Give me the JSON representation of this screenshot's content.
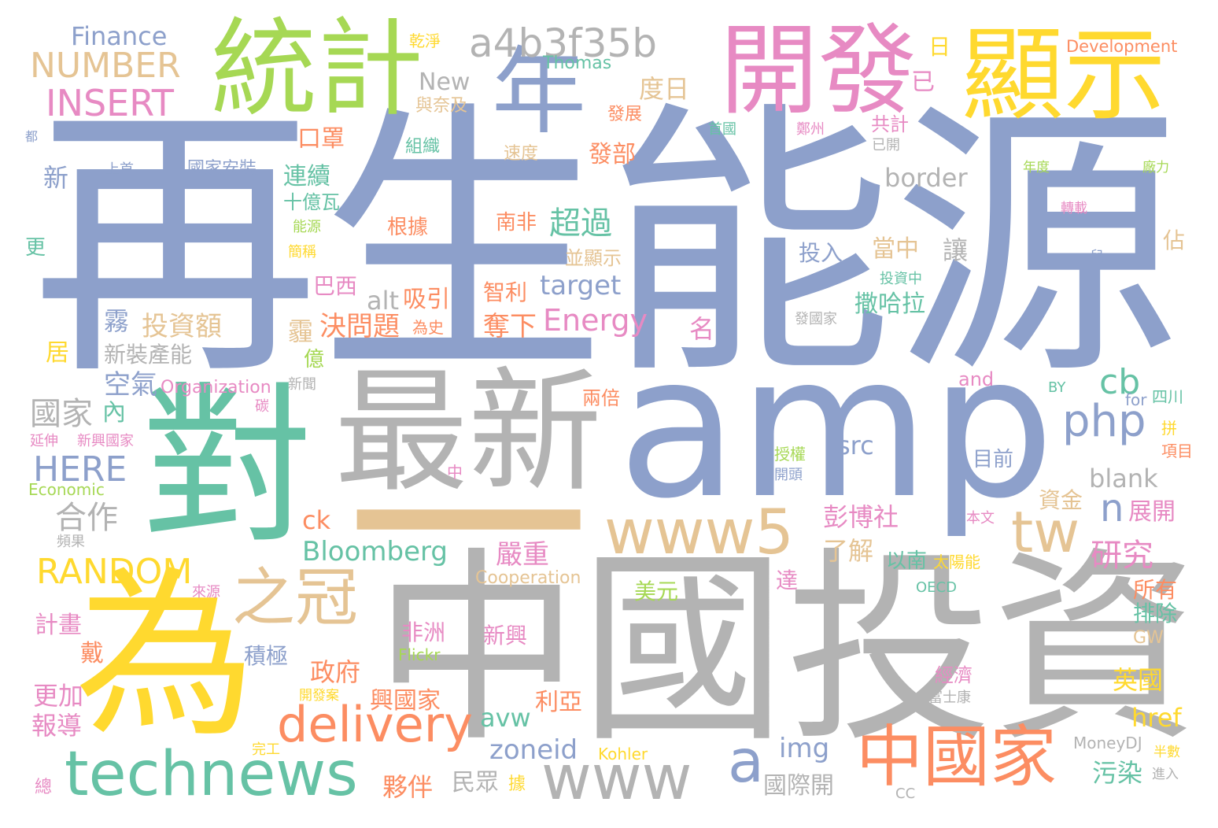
{
  "palette": {
    "blue": "#8da0cb",
    "gray": "#b3b3b3",
    "yellow": "#ffd92f",
    "green": "#a6d854",
    "pink": "#e78ac3",
    "orange": "#fc8d62",
    "teal": "#66c2a5",
    "tan": "#e5c494"
  },
  "words": [
    {
      "text": "再生能源",
      "color": "blue"
    },
    {
      "text": "amp",
      "color": "blue"
    },
    {
      "text": "中國投資",
      "color": "gray"
    },
    {
      "text": "一",
      "color": "tan"
    },
    {
      "text": "對",
      "color": "teal"
    },
    {
      "text": "為",
      "color": "yellow"
    },
    {
      "text": "最新",
      "color": "gray"
    },
    {
      "text": "統計",
      "color": "green"
    },
    {
      "text": "開發",
      "color": "pink"
    },
    {
      "text": "顯示",
      "color": "yellow"
    },
    {
      "text": "年",
      "color": "blue"
    },
    {
      "text": "technews",
      "color": "teal"
    },
    {
      "text": "www5",
      "color": "tan"
    },
    {
      "text": "www",
      "color": "gray"
    },
    {
      "text": "中國家",
      "color": "orange"
    },
    {
      "text": "a4b3f35b",
      "color": "gray"
    },
    {
      "text": "之冠",
      "color": "tan"
    },
    {
      "text": "delivery",
      "color": "orange"
    },
    {
      "text": "tw",
      "color": "tan"
    },
    {
      "text": "php",
      "color": "blue"
    },
    {
      "text": "a",
      "color": "blue"
    },
    {
      "text": "NUMBER",
      "color": "tan"
    },
    {
      "text": "INSERT",
      "color": "pink"
    },
    {
      "text": "HERE",
      "color": "blue"
    },
    {
      "text": "RANDOM",
      "color": "yellow"
    },
    {
      "text": "Finance",
      "color": "blue"
    },
    {
      "text": "Thomas",
      "color": "teal"
    },
    {
      "text": "Development",
      "color": "orange"
    },
    {
      "text": "乾淨",
      "color": "yellow"
    },
    {
      "text": "New",
      "color": "gray"
    },
    {
      "text": "與奈及",
      "color": "tan"
    },
    {
      "text": "度日",
      "color": "tan"
    },
    {
      "text": "日",
      "color": "yellow"
    },
    {
      "text": "已",
      "color": "pink"
    },
    {
      "text": "發展",
      "color": "orange"
    },
    {
      "text": "共計",
      "color": "pink"
    },
    {
      "text": "已開",
      "color": "gray"
    },
    {
      "text": "首國",
      "color": "teal"
    },
    {
      "text": "鄭州",
      "color": "pink"
    },
    {
      "text": "口罩",
      "color": "orange"
    },
    {
      "text": "組織",
      "color": "teal"
    },
    {
      "text": "速度",
      "color": "tan"
    },
    {
      "text": "發部",
      "color": "orange"
    },
    {
      "text": "都",
      "color": "blue"
    },
    {
      "text": "上首",
      "color": "blue"
    },
    {
      "text": "國家安裝",
      "color": "blue"
    },
    {
      "text": "新",
      "color": "blue"
    },
    {
      "text": "連續",
      "color": "teal"
    },
    {
      "text": "十億瓦",
      "color": "teal"
    },
    {
      "text": "border",
      "color": "gray"
    },
    {
      "text": "年度",
      "color": "green"
    },
    {
      "text": "廠力",
      "color": "green"
    },
    {
      "text": "轉載",
      "color": "pink"
    },
    {
      "text": "能源",
      "color": "green"
    },
    {
      "text": "根據",
      "color": "orange"
    },
    {
      "text": "南非",
      "color": "orange"
    },
    {
      "text": "超過",
      "color": "teal"
    },
    {
      "text": "更",
      "color": "teal"
    },
    {
      "text": "簡稱",
      "color": "yellow"
    },
    {
      "text": "並顯示",
      "color": "tan"
    },
    {
      "text": "投入",
      "color": "blue"
    },
    {
      "text": "當中",
      "color": "tan"
    },
    {
      "text": "讓",
      "color": "gray"
    },
    {
      "text": "佔",
      "color": "tan"
    },
    {
      "text": "兒",
      "color": "blue"
    },
    {
      "text": "投資中",
      "color": "teal"
    },
    {
      "text": "巴西",
      "color": "pink"
    },
    {
      "text": "智利",
      "color": "orange"
    },
    {
      "text": "target",
      "color": "blue"
    },
    {
      "text": "alt",
      "color": "gray"
    },
    {
      "text": "吸引",
      "color": "orange"
    },
    {
      "text": "撒哈拉",
      "color": "teal"
    },
    {
      "text": "發國家",
      "color": "gray"
    },
    {
      "text": "霧",
      "color": "blue"
    },
    {
      "text": "投資額",
      "color": "tan"
    },
    {
      "text": "霾",
      "color": "tan"
    },
    {
      "text": "決問題",
      "color": "orange"
    },
    {
      "text": "為史",
      "color": "orange"
    },
    {
      "text": "奪下",
      "color": "orange"
    },
    {
      "text": "Energy",
      "color": "pink"
    },
    {
      "text": "名",
      "color": "pink"
    },
    {
      "text": "居",
      "color": "yellow"
    },
    {
      "text": "新裝產能",
      "color": "gray"
    },
    {
      "text": "億",
      "color": "green"
    },
    {
      "text": "空氣",
      "color": "blue"
    },
    {
      "text": "Organization",
      "color": "pink"
    },
    {
      "text": "新聞",
      "color": "gray"
    },
    {
      "text": "cb",
      "color": "teal"
    },
    {
      "text": "and",
      "color": "pink"
    },
    {
      "text": "BY",
      "color": "teal"
    },
    {
      "text": "四川",
      "color": "teal"
    },
    {
      "text": "for",
      "color": "blue"
    },
    {
      "text": "國家",
      "color": "gray"
    },
    {
      "text": "內",
      "color": "teal"
    },
    {
      "text": "碳",
      "color": "pink"
    },
    {
      "text": "兩倍",
      "color": "orange"
    },
    {
      "text": "延伸",
      "color": "pink"
    },
    {
      "text": "新興國家",
      "color": "pink"
    },
    {
      "text": "拼",
      "color": "yellow"
    },
    {
      "text": "項目",
      "color": "orange"
    },
    {
      "text": "src",
      "color": "blue"
    },
    {
      "text": "授權",
      "color": "green"
    },
    {
      "text": "開頭",
      "color": "blue"
    },
    {
      "text": "目前",
      "color": "blue"
    },
    {
      "text": "中",
      "color": "pink"
    },
    {
      "text": "Economic",
      "color": "green"
    },
    {
      "text": "blank",
      "color": "gray"
    },
    {
      "text": "合作",
      "color": "gray"
    },
    {
      "text": "n",
      "color": "blue"
    },
    {
      "text": "資金",
      "color": "tan"
    },
    {
      "text": "展開",
      "color": "pink"
    },
    {
      "text": "頻果",
      "color": "gray"
    },
    {
      "text": "ck",
      "color": "orange"
    },
    {
      "text": "彭博社",
      "color": "pink"
    },
    {
      "text": "本文",
      "color": "pink"
    },
    {
      "text": "了解",
      "color": "tan"
    },
    {
      "text": "研究",
      "color": "pink"
    },
    {
      "text": "Bloomberg",
      "color": "teal"
    },
    {
      "text": "嚴重",
      "color": "pink"
    },
    {
      "text": "以南",
      "color": "teal"
    },
    {
      "text": "太陽能",
      "color": "yellow"
    },
    {
      "text": "Cooperation",
      "color": "tan"
    },
    {
      "text": "來源",
      "color": "pink"
    },
    {
      "text": "達",
      "color": "pink"
    },
    {
      "text": "美元",
      "color": "green"
    },
    {
      "text": "OECD",
      "color": "teal"
    },
    {
      "text": "所有",
      "color": "orange"
    },
    {
      "text": "排除",
      "color": "teal"
    },
    {
      "text": "計畫",
      "color": "pink"
    },
    {
      "text": "戴",
      "color": "orange"
    },
    {
      "text": "非洲",
      "color": "pink"
    },
    {
      "text": "新興",
      "color": "pink"
    },
    {
      "text": "GW",
      "color": "tan"
    },
    {
      "text": "積極",
      "color": "blue"
    },
    {
      "text": "Flickr",
      "color": "green"
    },
    {
      "text": "政府",
      "color": "orange"
    },
    {
      "text": "經濟",
      "color": "pink"
    },
    {
      "text": "英國",
      "color": "yellow"
    },
    {
      "text": "更加",
      "color": "pink"
    },
    {
      "text": "開發案",
      "color": "yellow"
    },
    {
      "text": "富士康",
      "color": "gray"
    },
    {
      "text": "興國家",
      "color": "orange"
    },
    {
      "text": "利亞",
      "color": "orange"
    },
    {
      "text": "報導",
      "color": "pink"
    },
    {
      "text": "avw",
      "color": "teal"
    },
    {
      "text": "href",
      "color": "yellow"
    },
    {
      "text": "zoneid",
      "color": "blue"
    },
    {
      "text": "img",
      "color": "blue"
    },
    {
      "text": "完工",
      "color": "yellow"
    },
    {
      "text": "Kohler",
      "color": "yellow"
    },
    {
      "text": "MoneyDJ",
      "color": "gray"
    },
    {
      "text": "半數",
      "color": "yellow"
    },
    {
      "text": "民眾",
      "color": "gray"
    },
    {
      "text": "夥伴",
      "color": "orange"
    },
    {
      "text": "據",
      "color": "yellow"
    },
    {
      "text": "國際開",
      "color": "gray"
    },
    {
      "text": "CC",
      "color": "gray"
    },
    {
      "text": "污染",
      "color": "teal"
    },
    {
      "text": "進入",
      "color": "gray"
    },
    {
      "text": "總",
      "color": "pink"
    }
  ]
}
